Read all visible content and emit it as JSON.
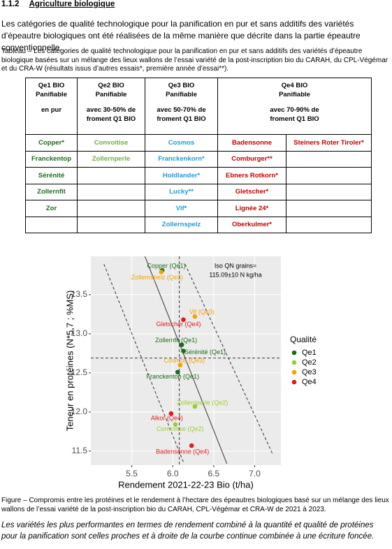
{
  "header": {
    "number": "1.1.2",
    "title": "Agriculture biologique"
  },
  "intro": "Les catégories de qualité technologique pour la panification en pur et sans additifs des variétés d’épeautre biologiques ont été réalisées de la même manière que décrite dans la partie épeautre conventionnelle.",
  "table_caption": "Tableau – Les catégories de qualité technologique pour la panification en pur et sans additifs des variétés d’épeautre biologique basées sur un mélange des lieux wallons de l’essai variété de la post-inscription bio du CARAH, du CPL-Végémar et du CRA-W (résultats issus d’autres essais*, première année d’essai**).",
  "table": {
    "header": [
      [
        "Qe1 BIO",
        "Panifiable",
        "en pur"
      ],
      [
        "Qe2 BIO",
        "Panifiable",
        "avec 30-50% de",
        "froment Q1 BIO"
      ],
      [
        "Qe3 BIO",
        "Panifiable",
        "avec 50-70% de",
        "froment Q1 BIO"
      ],
      [
        "Qe4 BIO",
        "Panifiable",
        "avec 70-90% de",
        "froment Q1 BIO"
      ]
    ],
    "columns": [
      [
        "Copper*",
        "Franckentop",
        "Sérénité",
        "Zollernfit",
        "Zor"
      ],
      [
        "Convoitise",
        "Zollernperle"
      ],
      [
        "Cosmos",
        "Franckenkorn*",
        "Holdlander*",
        "Lucky**",
        "Vif*",
        "Zollernspelz"
      ],
      [
        "Badensonne",
        "Comburger**",
        "Ebners Rotkorn*",
        "Gletscher*",
        "Lignée 24*",
        "Oberkulmer*"
      ],
      [
        "Steiners Roter Tiroler*"
      ]
    ],
    "colors": [
      "#1e6b1e",
      "#70ad47",
      "#1f9bd7",
      "#c00000",
      "#c00000"
    ]
  },
  "chart_data": {
    "type": "scatter",
    "xlabel": "Rendement 2021-22-23 Bio (t/ha)",
    "ylabel": "Teneur en protéines (N*5,7 ; %MS)",
    "xlim": [
      5.0,
      7.32
    ],
    "ylim": [
      11.32,
      13.99
    ],
    "xticks": [
      5.5,
      {
        "value": 6,
        "label": "6.0"
      },
      6.5,
      {
        "value": 7,
        "label": "7.0"
      }
    ],
    "yticks": [
      11.5,
      {
        "value": 12,
        "label": "12.0"
      },
      12.5,
      {
        "value": 13,
        "label": "13.0"
      },
      13.5
    ],
    "grid": true,
    "annotation": [
      "Iso QN grains=",
      "115.09±10 N kg/ha"
    ],
    "legend_title": "Qualité",
    "series": [
      {
        "name": "Qe1",
        "color": "#1a6b1a",
        "x": [
          5.87,
          6.11,
          6.13,
          6.06
        ],
        "y": [
          13.81,
          12.86,
          12.78,
          12.51
        ],
        "labels": [
          "Copper (Qe1)",
          "Zollernfit (Qe1)",
          "Sérénité (Qe1)",
          "Franckentop (Qe1)"
        ]
      },
      {
        "name": "Qe2",
        "color": "#9acd32",
        "x": [
          6.27,
          6.03
        ],
        "y": [
          12.07,
          11.84
        ],
        "labels": [
          "Zollernperle (Qe2)",
          "Convoitise (Qe2)"
        ]
      },
      {
        "name": "Qe3",
        "color": "#f5a300",
        "x": [
          5.86,
          6.27,
          6.09
        ],
        "y": [
          13.79,
          13.22,
          12.6
        ],
        "labels": [
          "Zollernspelz (Qe3)",
          "Vif (Qe3)",
          "Cosmos (Qe3)"
        ]
      },
      {
        "name": "Qe4",
        "color": "#e41a1c",
        "x": [
          6.13,
          5.98,
          6.23
        ],
        "y": [
          13.18,
          11.98,
          11.57
        ],
        "labels": [
          "Gletscher (Qe4)",
          "Alkor (Qe4)",
          "Badensonne (Qe4)"
        ]
      }
    ],
    "reference_lines": {
      "vline": 6.08,
      "hline": 12.69
    },
    "iso_lines": [
      {
        "style": "solid",
        "x": [
          5.66,
          6.66
        ],
        "y": [
          13.99,
          11.34
        ]
      },
      {
        "style": "dashed",
        "x": [
          5.16,
          6.13
        ],
        "y": [
          13.89,
          11.36
        ]
      },
      {
        "style": "dashed",
        "x": [
          6.15,
          7.22
        ],
        "y": [
          13.89,
          11.46
        ]
      }
    ]
  },
  "figure_caption": "Figure – Compromis entre les protéines et le rendement à l’hectare des épeautres biologiques basé sur un mélange des lieux wallons de l’essai variété de la post-inscription bio du CARAH, CPL-Végémar et CRA-W de 2021 à 2023.",
  "conclusion": "Les variétés les plus performantes en termes de rendement combiné à la quantité et qualité de protéines pour la panification sont celles proches et à droite de la courbe continue combinée à une écriture foncée."
}
